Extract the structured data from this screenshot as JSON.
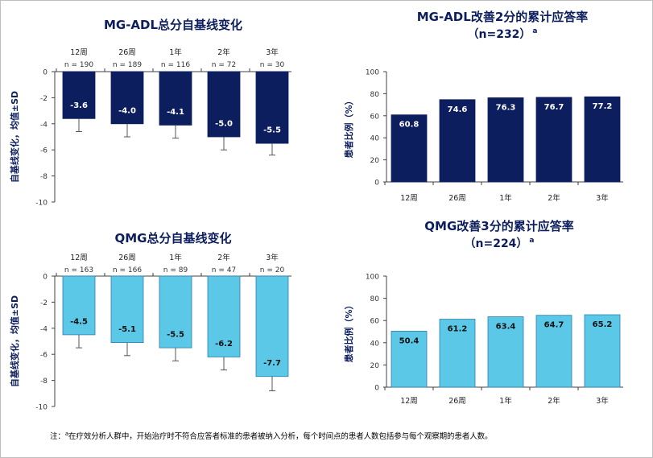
{
  "chart_data": [
    {
      "id": "c1",
      "type": "bar",
      "title": "MG-ADL总分自基线变化",
      "ylabel": "自基线变化，均值±SD",
      "ylim": [
        -10,
        0
      ],
      "yticks": [
        "0",
        "-2",
        "-4",
        "-6",
        "-8",
        "-10"
      ],
      "bar_color": "#0d1e5e",
      "label_color": "#ffffff",
      "categories": [
        "12周",
        "26周",
        "1年",
        "2年",
        "3年"
      ],
      "n_labels": [
        "n = 190",
        "n = 189",
        "n = 116",
        "n = 72",
        "n = 30"
      ],
      "values": [
        -3.6,
        -4.0,
        -4.1,
        -5.0,
        -5.5
      ],
      "value_labels": [
        "-3.6",
        "-4.0",
        "-4.1",
        "-5.0",
        "-5.5"
      ],
      "sd": [
        1.0,
        1.0,
        1.0,
        1.0,
        0.9
      ]
    },
    {
      "id": "c2",
      "type": "bar",
      "title": "MG-ADL改善2分的累计应答率",
      "subtitle": "（n=232）",
      "subtitle_sup": "a",
      "ylabel": "患者比例（%）",
      "ylim": [
        0,
        100
      ],
      "yticks": [
        "0",
        "20",
        "40",
        "60",
        "80",
        "100"
      ],
      "bar_color": "#0d1e5e",
      "label_color": "#ffffff",
      "categories": [
        "12周",
        "26周",
        "1年",
        "2年",
        "3年"
      ],
      "values": [
        60.8,
        74.6,
        76.3,
        76.7,
        77.2
      ],
      "value_labels": [
        "60.8",
        "74.6",
        "76.3",
        "76.7",
        "77.2"
      ]
    },
    {
      "id": "c3",
      "type": "bar",
      "title": "QMG总分自基线变化",
      "ylabel": "自基线变化，均值±SD",
      "ylim": [
        -10,
        0
      ],
      "yticks": [
        "0",
        "-2",
        "-4",
        "-6",
        "-8",
        "-10"
      ],
      "bar_color": "#5bc8e8",
      "label_color": "#111111",
      "categories": [
        "12周",
        "26周",
        "1年",
        "2年",
        "3年"
      ],
      "n_labels": [
        "n = 163",
        "n = 166",
        "n = 89",
        "n = 47",
        "n = 20"
      ],
      "values": [
        -4.5,
        -5.1,
        -5.5,
        -6.2,
        -7.7
      ],
      "value_labels": [
        "-4.5",
        "-5.1",
        "-5.5",
        "-6.2",
        "-7.7"
      ],
      "sd": [
        1.0,
        1.0,
        1.0,
        1.0,
        1.1
      ]
    },
    {
      "id": "c4",
      "type": "bar",
      "title": "QMG改善3分的累计应答率",
      "subtitle": "（n=224）",
      "subtitle_sup": "a",
      "ylabel": "患者比例（%）",
      "ylim": [
        0,
        100
      ],
      "yticks": [
        "0",
        "20",
        "40",
        "60",
        "80",
        "100"
      ],
      "bar_color": "#5bc8e8",
      "label_color": "#111111",
      "categories": [
        "12周",
        "26周",
        "1年",
        "2年",
        "3年"
      ],
      "values": [
        50.4,
        61.2,
        63.4,
        64.7,
        65.2
      ],
      "value_labels": [
        "50.4",
        "61.2",
        "63.4",
        "64.7",
        "65.2"
      ]
    }
  ],
  "footnote": {
    "prefix": "注：",
    "sup": "a",
    "text": "在疗效分析人群中，开始治疗时不符合应答者标准的患者被纳入分析，每个时间点的患者人数包括参与每个观察期的患者人数。"
  },
  "colors": {
    "title": "#0d1e5e",
    "axis": "#404040"
  }
}
